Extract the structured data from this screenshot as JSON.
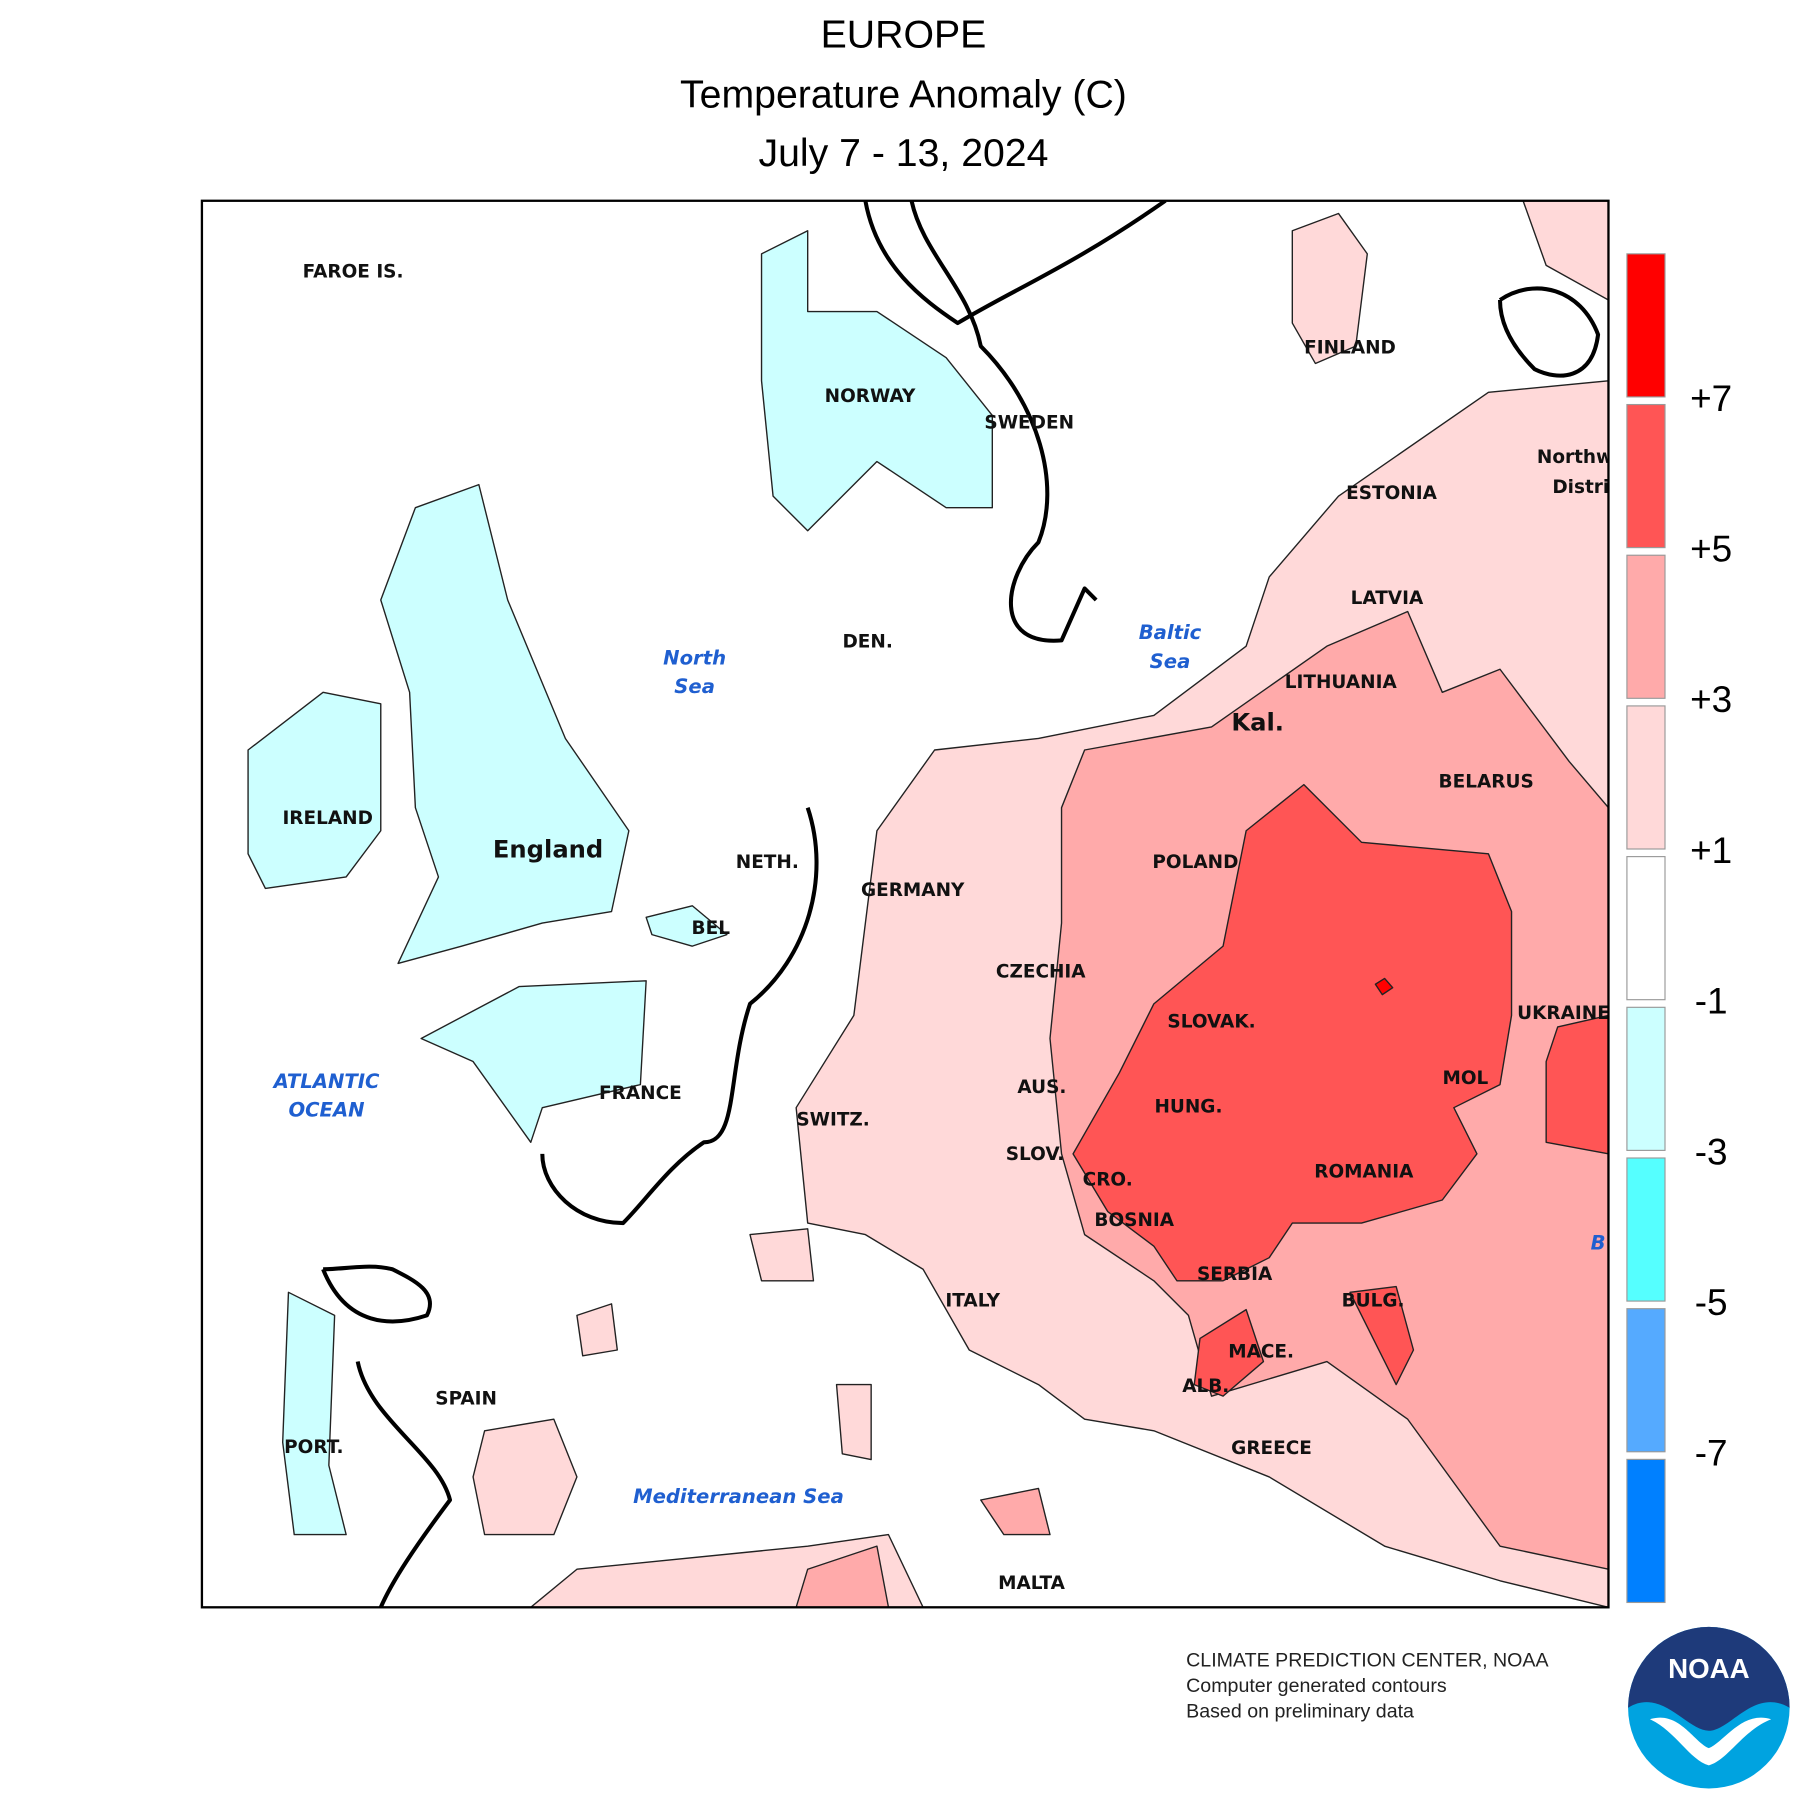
{
  "header": {
    "title": "EUROPE",
    "subtitle": "Temperature Anomaly (C)",
    "dates": "July 7 - 13, 2024"
  },
  "map": {
    "labels": [
      "FAROE IS.",
      "NORWAY",
      "SWEDEN",
      "FINLAND",
      "ESTONIA",
      "LATVIA",
      "LITHUANIA",
      "Kal.",
      "BELARUS",
      "POLAND",
      "GERMANY",
      "NETH.",
      "BEL",
      "DEN.",
      "IRELAND",
      "England",
      "CZECHIA",
      "SLOVAK.",
      "UKRAINE",
      "AUS.",
      "HUNG.",
      "MOL",
      "SWITZ.",
      "SLOV.",
      "CRO.",
      "ROMANIA",
      "BOSNIA",
      "SERBIA",
      "BULG.",
      "ITALY",
      "MACE.",
      "ALB.",
      "SPAIN",
      "PORT.",
      "GREECE",
      "MALTA",
      "FRANCE",
      "Northw",
      "Distri"
    ],
    "water_labels": [
      [
        "North",
        "Sea"
      ],
      [
        "Baltic",
        "Sea"
      ],
      [
        "ATLANTIC",
        "OCEAN"
      ],
      [
        "Mediterranean Sea"
      ],
      [
        "B"
      ]
    ]
  },
  "legend": {
    "colors": [
      "#ff0000",
      "#ff5555",
      "#ffaaaa",
      "#ffd9d9",
      "#ffffff",
      "#ccffff",
      "#55ffff",
      "#55aaff",
      "#0080ff"
    ],
    "ticks": [
      "+7",
      "+5",
      "+3",
      "+1",
      "-1",
      "-3",
      "-5",
      "-7"
    ]
  },
  "footer": {
    "lines": [
      "CLIMATE PREDICTION CENTER, NOAA",
      "Computer generated contours",
      "Based on preliminary data"
    ]
  },
  "logo": {
    "text": "NOAA"
  }
}
